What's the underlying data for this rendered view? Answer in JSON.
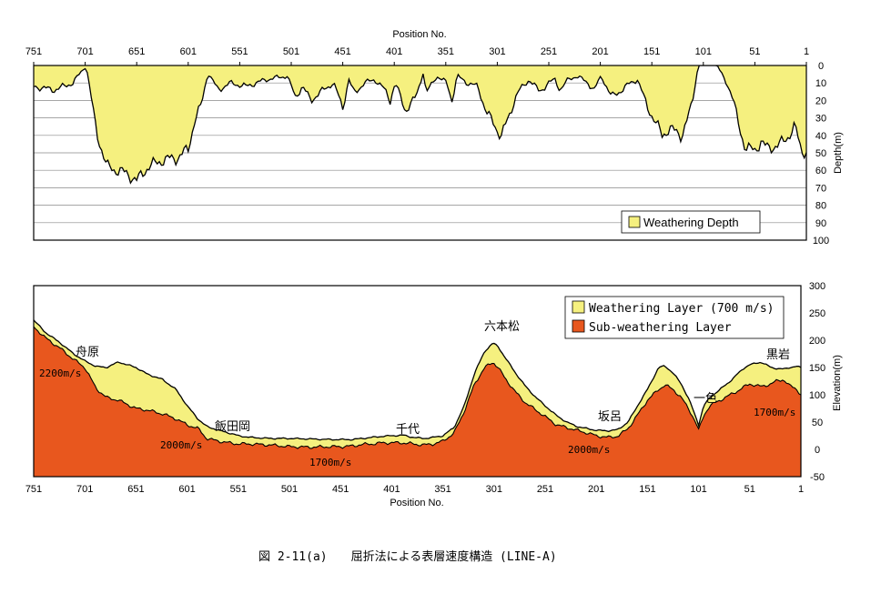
{
  "chart_data": [
    {
      "type": "area",
      "xlabel": "Position No.",
      "ylabel": "Depth(m)",
      "xlim": [
        751,
        1
      ],
      "ylim": [
        0,
        100
      ],
      "x_ticks": [
        751,
        701,
        651,
        601,
        551,
        501,
        451,
        401,
        351,
        301,
        251,
        201,
        151,
        101,
        51,
        1
      ],
      "y_ticks": [
        0,
        10,
        20,
        30,
        40,
        50,
        60,
        70,
        80,
        90,
        100
      ],
      "grid": true,
      "legend": "bottom-right",
      "colors": {
        "fill": "#f5f07f",
        "line": "#000000"
      },
      "series": [
        {
          "name": "Weathering Depth",
          "x": [
            751,
            731,
            713,
            704,
            700,
            690,
            680,
            670,
            660,
            651,
            640,
            625,
            612,
            601,
            595,
            588,
            582,
            572,
            560,
            545,
            525,
            505,
            497,
            490,
            482,
            470,
            460,
            451,
            445,
            440,
            430,
            420,
            410,
            405,
            400,
            390,
            380,
            373,
            370,
            360,
            350,
            345,
            340,
            330,
            320,
            312,
            302,
            297,
            290,
            282,
            270,
            260,
            251,
            245,
            240,
            232,
            224,
            213,
            207,
            200,
            190,
            180,
            172,
            165,
            155,
            148,
            141,
            134,
            122,
            116,
            112,
            106,
            101,
            88,
            78,
            72,
            66,
            60,
            51,
            45,
            40,
            28,
            18,
            12,
            6,
            1
          ],
          "values": [
            12,
            14,
            10,
            3,
            0,
            38,
            58,
            60,
            62,
            66,
            58,
            54,
            53,
            48,
            32,
            22,
            4,
            14,
            10,
            12,
            8,
            6,
            18,
            12,
            20,
            14,
            10,
            24,
            8,
            16,
            10,
            8,
            14,
            20,
            10,
            26,
            18,
            4,
            16,
            6,
            10,
            20,
            6,
            10,
            12,
            26,
            36,
            40,
            30,
            16,
            8,
            15,
            10,
            8,
            14,
            8,
            6,
            10,
            14,
            6,
            18,
            14,
            10,
            8,
            24,
            32,
            40,
            36,
            40,
            30,
            22,
            0,
            0,
            0,
            10,
            20,
            35,
            48,
            48,
            44,
            47,
            46,
            40,
            35,
            48,
            50
          ]
        }
      ]
    },
    {
      "type": "area",
      "xlabel": "Position No.",
      "ylabel": "Elevation(m)",
      "xlim": [
        751,
        1
      ],
      "ylim": [
        -50,
        300
      ],
      "x_ticks": [
        751,
        701,
        651,
        601,
        551,
        501,
        451,
        401,
        351,
        301,
        251,
        201,
        151,
        101,
        51,
        1
      ],
      "y_ticks": [
        -50,
        0,
        50,
        100,
        150,
        200,
        250,
        300
      ],
      "grid": false,
      "legend": "top-right",
      "colors": {
        "weathering": "#f5f07f",
        "sub_weathering": "#e8571e",
        "line": "#000000"
      },
      "x": [
        751,
        740,
        725,
        712,
        701,
        690,
        680,
        668,
        651,
        640,
        625,
        612,
        601,
        590,
        582,
        570,
        560,
        551,
        540,
        520,
        501,
        480,
        460,
        451,
        440,
        430,
        420,
        410,
        401,
        390,
        380,
        370,
        360,
        351,
        340,
        330,
        320,
        310,
        302,
        297,
        290,
        280,
        270,
        260,
        251,
        240,
        230,
        220,
        210,
        201,
        190,
        180,
        170,
        160,
        151,
        140,
        134,
        126,
        118,
        110,
        104,
        101,
        96,
        90,
        80,
        70,
        62,
        56,
        51,
        40,
        30,
        24,
        18,
        12,
        6,
        1
      ],
      "series": [
        {
          "name": "Weathering Layer (700 m/s)",
          "values": [
            237,
            215,
            195,
            175,
            162,
            152,
            150,
            160,
            150,
            138,
            128,
            110,
            80,
            55,
            42,
            35,
            30,
            25,
            22,
            20,
            20,
            19,
            18,
            18,
            18,
            20,
            22,
            24,
            25,
            26,
            22,
            20,
            22,
            25,
            40,
            80,
            140,
            180,
            195,
            188,
            168,
            140,
            115,
            95,
            80,
            62,
            50,
            42,
            38,
            35,
            34,
            36,
            50,
            82,
            110,
            150,
            153,
            140,
            120,
            90,
            60,
            45,
            80,
            95,
            110,
            125,
            140,
            150,
            155,
            160,
            150,
            148,
            147,
            150,
            152,
            150
          ]
        },
        {
          "name": "Sub-weathering Layer",
          "values": [
            225,
            205,
            185,
            165,
            150,
            112,
            95,
            90,
            75,
            72,
            65,
            56,
            45,
            38,
            20,
            15,
            12,
            10,
            10,
            8,
            5,
            4,
            5,
            5,
            6,
            9,
            10,
            12,
            12,
            12,
            10,
            8,
            10,
            15,
            30,
            70,
            120,
            150,
            160,
            150,
            130,
            105,
            85,
            72,
            60,
            45,
            40,
            35,
            30,
            25,
            22,
            24,
            38,
            65,
            90,
            110,
            118,
            110,
            95,
            72,
            50,
            35,
            62,
            80,
            90,
            100,
            108,
            115,
            120,
            115,
            120,
            126,
            128,
            116,
            112,
            100
          ]
        }
      ],
      "annotations": [
        "舟原",
        "飯田岡",
        "千代",
        "六本松",
        "坂呂",
        "一色",
        "黒岩"
      ],
      "velocity_labels": [
        "2200m/s",
        "2000m/s",
        "1700m/s",
        "2000m/s",
        "1700m/s"
      ]
    }
  ],
  "caption": "図 2-11(a)　　屈折法による表層速度構造 (LINE-A)"
}
